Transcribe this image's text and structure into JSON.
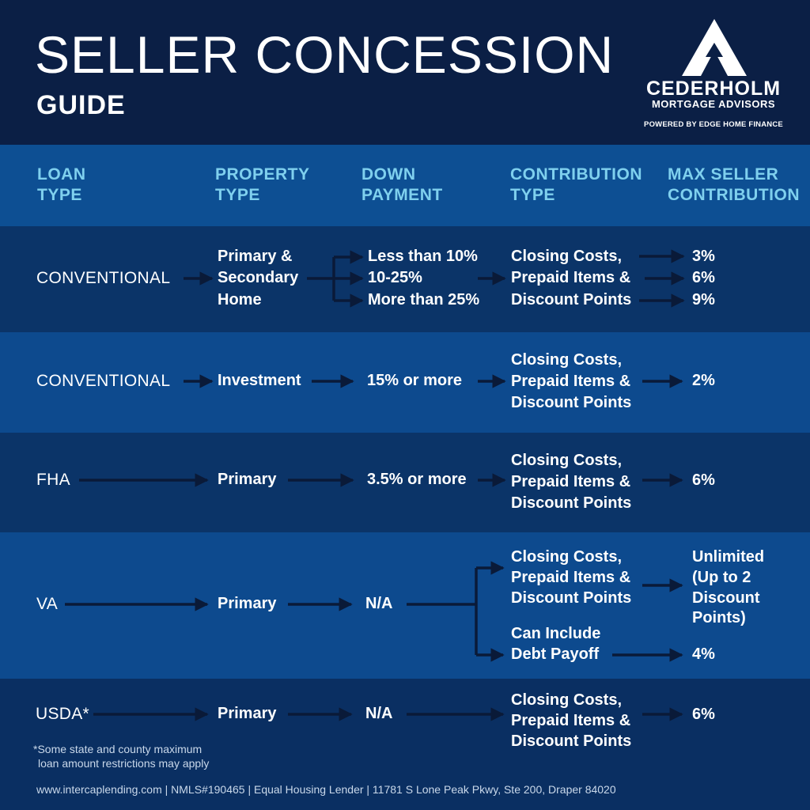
{
  "header": {
    "title": "SELLER CONCESSION",
    "subtitle": "GUIDE",
    "brand_name": "CEDERHOLM",
    "brand_sub": "MORTGAGE ADVISORS",
    "powered_by": "POWERED BY EDGE HOME FINANCE"
  },
  "columns": [
    {
      "line1": "LOAN",
      "line2": "TYPE"
    },
    {
      "line1": "PROPERTY",
      "line2": "TYPE"
    },
    {
      "line1": "DOWN",
      "line2": "PAYMENT"
    },
    {
      "line1": "CONTRIBUTION",
      "line2": "TYPE"
    },
    {
      "line1": "MAX SELLER",
      "line2": "CONTRIBUTION"
    }
  ],
  "rows": [
    {
      "loan_type": "CONVENTIONAL",
      "property_type": [
        "Primary &",
        "Secondary",
        "Home"
      ],
      "down_payment": [
        "Less than 10%",
        "10-25%",
        "More than 25%"
      ],
      "contribution_type": [
        "Closing Costs,",
        "Prepaid Items &",
        "Discount Points"
      ],
      "max_contribution": [
        "3%",
        "6%",
        "9%"
      ]
    },
    {
      "loan_type": "CONVENTIONAL",
      "property_type": "Investment",
      "down_payment": "15% or more",
      "contribution_type": [
        "Closing Costs,",
        "Prepaid Items &",
        "Discount Points"
      ],
      "max_contribution": "2%"
    },
    {
      "loan_type": "FHA",
      "property_type": "Primary",
      "down_payment": "3.5% or more",
      "contribution_type": [
        "Closing Costs,",
        "Prepaid Items &",
        "Discount Points"
      ],
      "max_contribution": "6%"
    },
    {
      "loan_type": "VA",
      "property_type": "Primary",
      "down_payment": "N/A",
      "contribution_type": [
        "Closing Costs,",
        "Prepaid Items &",
        "Discount Points"
      ],
      "contribution_type_2": [
        "Can Include",
        "Debt Payoff"
      ],
      "max_contribution": [
        "Unlimited",
        "(Up to 2",
        "Discount",
        "Points)"
      ],
      "max_contribution_2": "4%"
    },
    {
      "loan_type": "USDA*",
      "property_type": "Primary",
      "down_payment": "N/A",
      "contribution_type": [
        "Closing Costs,",
        "Prepaid Items &",
        "Discount Points"
      ],
      "max_contribution": "6%"
    }
  ],
  "footnote": [
    "*Some state and county maximum",
    "loan amount restrictions may apply"
  ],
  "footer": "www.intercaplending.com | NMLS#190465 | Equal Housing Lender | 11781 S Lone Peak Pkwy, Ste 200, Draper 84020",
  "colors": {
    "header_bg": "#0b1f45",
    "column_header_text": "#7fd0ee",
    "arrow": "#0a1a38"
  }
}
